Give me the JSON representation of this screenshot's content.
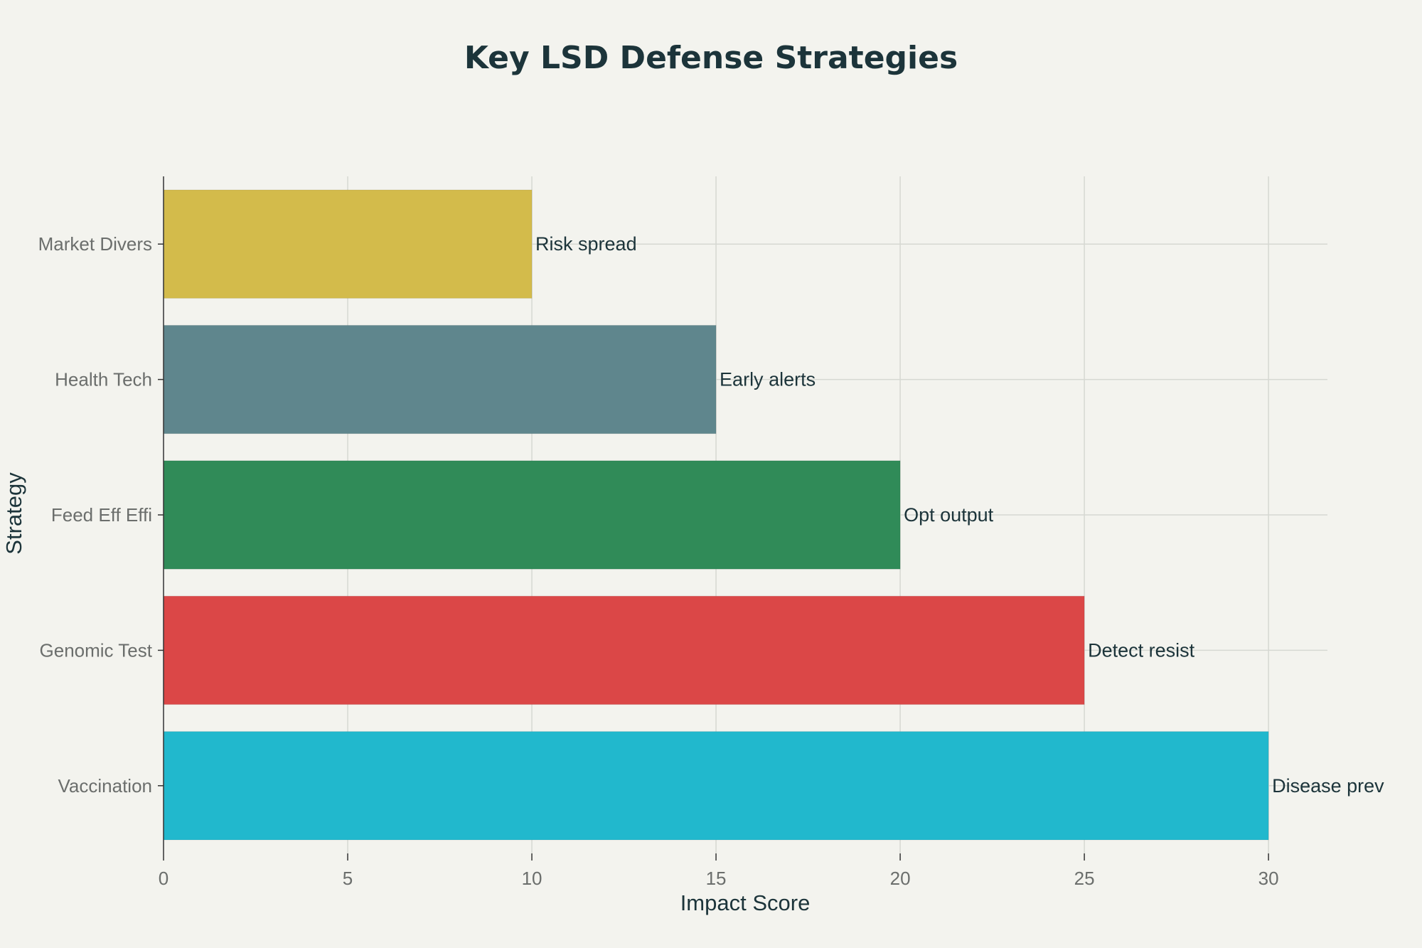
{
  "chart_data": {
    "type": "bar",
    "orientation": "horizontal",
    "title": "Key LSD Defense Strategies",
    "xlabel": "Impact Score",
    "ylabel": "Strategy",
    "xlim": [
      0,
      31.6
    ],
    "xticks": [
      0,
      5,
      10,
      15,
      20,
      25,
      30
    ],
    "grid": true,
    "categories": [
      "Market Divers",
      "Health Tech",
      "Feed Eff Effi",
      "Genomic Test",
      "Vaccination"
    ],
    "values": [
      10,
      15,
      20,
      25,
      30
    ],
    "data_labels": [
      "Risk spread",
      "Early alerts",
      "Opt output",
      "Detect resist",
      "Disease prev"
    ],
    "colors": [
      "#d3bb4b",
      "#5f868d",
      "#308b58",
      "#db4747",
      "#21b8cd"
    ]
  }
}
